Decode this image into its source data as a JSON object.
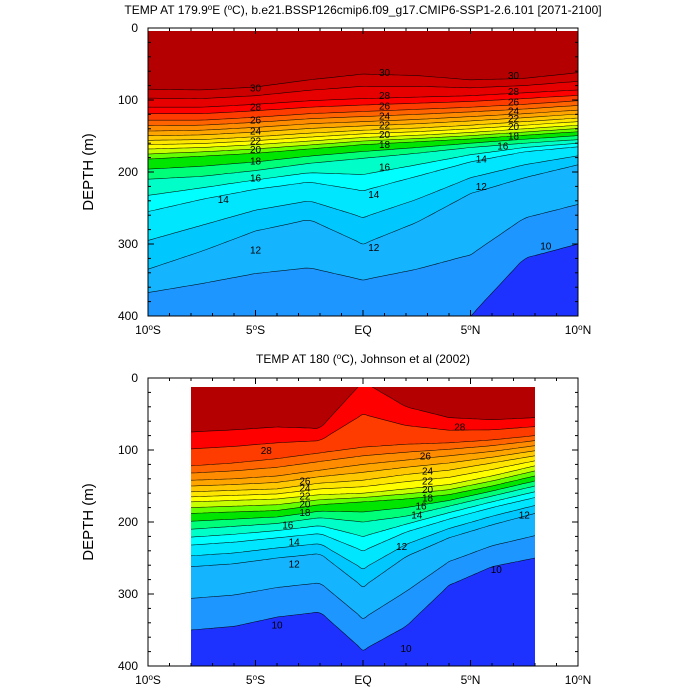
{
  "chart_data": [
    {
      "type": "contour",
      "title_parts": [
        "TEMP AT 179.9",
        "o",
        "E (",
        "o",
        "C), b.e21.BSSP126cmip6.f09_g17.CMIP6-SSP1-2.6.101 [2071-2100]"
      ],
      "ylabel": "DEPTH (m)",
      "xlabel": "",
      "xlim": [
        -10,
        10
      ],
      "ylim": [
        0,
        400
      ],
      "y_reversed": true,
      "data_xrange": [
        -10,
        10
      ],
      "xticks": [
        -10,
        -5,
        0,
        5,
        10
      ],
      "xtick_labels": [
        [
          "10",
          "o",
          "S"
        ],
        [
          "5",
          "o",
          "S"
        ],
        [
          "EQ"
        ],
        [
          "5",
          "o",
          "N"
        ],
        [
          "10",
          "o",
          "N"
        ]
      ],
      "yticks": [
        0,
        100,
        200,
        300,
        400
      ],
      "ytick_labels": [
        "0",
        "100",
        "200",
        "300",
        "400"
      ],
      "contour_interval": 1,
      "isotherm_depth_profiles": {
        "x": [
          -10,
          -7.5,
          -5,
          -2.5,
          0,
          2.5,
          5,
          7.5,
          10
        ],
        "levels": [
          {
            "t": 30,
            "depth": [
              85,
              86,
              82,
              72,
              64,
              66,
              72,
              70,
              62
            ]
          },
          {
            "t": 28,
            "depth": [
              110,
              110,
              106,
              101,
              98,
              96,
              94,
              90,
              86
            ]
          },
          {
            "t": 26,
            "depth": [
              128,
              128,
              124,
              119,
              116,
              113,
              110,
              106,
              101
            ]
          },
          {
            "t": 24,
            "depth": [
              143,
              142,
              138,
              133,
              130,
              127,
              123,
              119,
              114
            ]
          },
          {
            "t": 22,
            "depth": [
              156,
              155,
              151,
              146,
              142,
              139,
              135,
              130,
              125
            ]
          },
          {
            "t": 20,
            "depth": [
              168,
              166,
              162,
              157,
              152,
              149,
              145,
              140,
              135
            ]
          },
          {
            "t": 18,
            "depth": [
              182,
              178,
              174,
              168,
              162,
              158,
              154,
              149,
              144
            ]
          },
          {
            "t": 16,
            "depth": [
              210,
              206,
              198,
              188,
              181,
              174,
              166,
              160,
              155
            ]
          },
          {
            "t": 14,
            "depth": [
              255,
              238,
              224,
              214,
              226,
              206,
              186,
              172,
              165
            ]
          },
          {
            "t": 12,
            "depth": [
              335,
              310,
              282,
              266,
              300,
              270,
              230,
              208,
              190
            ]
          },
          {
            "t": 10,
            "depth": [
              400,
              400,
              400,
              400,
              400,
              400,
              400,
              320,
              300
            ]
          }
        ]
      },
      "contour_labels": [
        {
          "text": "30",
          "x": -5,
          "depth": 83
        },
        {
          "text": "28",
          "x": -5,
          "depth": 110
        },
        {
          "text": "26",
          "x": -5,
          "depth": 128
        },
        {
          "text": "24",
          "x": -5,
          "depth": 143
        },
        {
          "text": "22",
          "x": -5,
          "depth": 157
        },
        {
          "text": "20",
          "x": -5,
          "depth": 169
        },
        {
          "text": "18",
          "x": -5,
          "depth": 185
        },
        {
          "text": "16",
          "x": -5,
          "depth": 208
        },
        {
          "text": "14",
          "x": -6.5,
          "depth": 238
        },
        {
          "text": "12",
          "x": -5,
          "depth": 308
        },
        {
          "text": "30",
          "x": 1,
          "depth": 62
        },
        {
          "text": "28",
          "x": 1,
          "depth": 94
        },
        {
          "text": "26",
          "x": 1,
          "depth": 108
        },
        {
          "text": "24",
          "x": 1,
          "depth": 122
        },
        {
          "text": "22",
          "x": 1,
          "depth": 135
        },
        {
          "text": "20",
          "x": 1,
          "depth": 148
        },
        {
          "text": "18",
          "x": 1,
          "depth": 162
        },
        {
          "text": "16",
          "x": 1,
          "depth": 193
        },
        {
          "text": "14",
          "x": 0.5,
          "depth": 231
        },
        {
          "text": "12",
          "x": 0.5,
          "depth": 305
        },
        {
          "text": "30",
          "x": 7,
          "depth": 66
        },
        {
          "text": "28",
          "x": 7,
          "depth": 88
        },
        {
          "text": "26",
          "x": 7,
          "depth": 103
        },
        {
          "text": "24",
          "x": 7,
          "depth": 115
        },
        {
          "text": "22",
          "x": 7,
          "depth": 126
        },
        {
          "text": "20",
          "x": 7,
          "depth": 137
        },
        {
          "text": "18",
          "x": 7,
          "depth": 150
        },
        {
          "text": "16",
          "x": 6.5,
          "depth": 164
        },
        {
          "text": "14",
          "x": 5.5,
          "depth": 182
        },
        {
          "text": "12",
          "x": 5.5,
          "depth": 220
        },
        {
          "text": "10",
          "x": 8.5,
          "depth": 303
        }
      ],
      "colors": {
        "warm_to_cold": [
          "#b40000",
          "#cd0000",
          "#e60000",
          "#ff0000",
          "#ff3c00",
          "#ff6400",
          "#ff8c00",
          "#ffa500",
          "#ffc800",
          "#ffe600",
          "#ffff00",
          "#c8ff00",
          "#64ff00",
          "#00e600",
          "#00ff78",
          "#00ffc8",
          "#00ffff",
          "#00e6ff",
          "#00c8ff",
          "#14b4ff",
          "#1e96ff",
          "#1e78ff",
          "#1e5aff",
          "#1e32ff"
        ]
      }
    },
    {
      "type": "contour",
      "title_parts": [
        "TEMP AT 180 (",
        "o",
        "C), Johnson et al (2002)"
      ],
      "ylabel": "DEPTH (m)",
      "xlabel": "",
      "xlim": [
        -10,
        10
      ],
      "ylim": [
        0,
        400
      ],
      "y_reversed": true,
      "data_xrange": [
        -8,
        8
      ],
      "xticks": [
        -10,
        -5,
        0,
        5,
        10
      ],
      "xtick_labels": [
        [
          "10",
          "o",
          "S"
        ],
        [
          "5",
          "o",
          "S"
        ],
        [
          "EQ"
        ],
        [
          "5",
          "o",
          "N"
        ],
        [
          "10",
          "o",
          "N"
        ]
      ],
      "yticks": [
        0,
        100,
        200,
        300,
        400
      ],
      "ytick_labels": [
        "0",
        "100",
        "200",
        "300",
        "400"
      ],
      "contour_interval": 1,
      "isotherm_depth_profiles": {
        "x": [
          -8,
          -6,
          -4,
          -2,
          0,
          2,
          4,
          6,
          8
        ],
        "levels": [
          {
            "t": 28,
            "depth": [
              75,
              72,
              68,
              70,
              5,
              40,
              55,
              58,
              55
            ]
          },
          {
            "t": 26,
            "depth": [
              122,
              118,
              112,
              104,
              96,
              92,
              90,
              86,
              80
            ]
          },
          {
            "t": 24,
            "depth": [
              142,
              140,
              136,
              128,
              120,
              114,
              108,
              102,
              94
            ]
          },
          {
            "t": 22,
            "depth": [
              158,
              156,
              154,
              146,
              142,
              134,
              128,
              118,
              108
            ]
          },
          {
            "t": 20,
            "depth": [
              172,
              170,
              168,
              162,
              160,
              154,
              148,
              136,
              122
            ]
          },
          {
            "t": 18,
            "depth": [
              188,
              186,
              184,
              176,
              172,
              168,
              162,
              150,
              136
            ]
          },
          {
            "t": 16,
            "depth": [
              210,
              206,
              202,
              194,
              200,
              192,
              178,
              164,
              150
            ]
          },
          {
            "t": 14,
            "depth": [
              232,
              228,
              222,
              216,
              240,
              214,
              196,
              180,
              166
            ]
          },
          {
            "t": 12,
            "depth": [
              262,
              258,
              250,
              244,
              290,
              248,
              222,
              204,
              188
            ]
          },
          {
            "t": 10,
            "depth": [
              350,
              345,
              332,
              325,
              378,
              345,
              288,
              262,
              250
            ]
          }
        ]
      },
      "contour_labels": [
        {
          "text": "28",
          "x": 4.5,
          "depth": 68
        },
        {
          "text": "28",
          "x": -4.5,
          "depth": 101
        },
        {
          "text": "26",
          "x": 2.9,
          "depth": 108
        },
        {
          "text": "24",
          "x": 3,
          "depth": 129
        },
        {
          "text": "22",
          "x": 3,
          "depth": 143
        },
        {
          "text": "20",
          "x": 3,
          "depth": 155
        },
        {
          "text": "18",
          "x": 3,
          "depth": 167
        },
        {
          "text": "16",
          "x": 2.7,
          "depth": 178
        },
        {
          "text": "14",
          "x": 2.5,
          "depth": 190
        },
        {
          "text": "12",
          "x": 1.8,
          "depth": 234
        },
        {
          "text": "26",
          "x": -2.7,
          "depth": 143
        },
        {
          "text": "24",
          "x": -2.7,
          "depth": 153
        },
        {
          "text": "22",
          "x": -2.7,
          "depth": 164
        },
        {
          "text": "20",
          "x": -2.7,
          "depth": 175
        },
        {
          "text": "18",
          "x": -2.7,
          "depth": 187
        },
        {
          "text": "16",
          "x": -3.5,
          "depth": 204
        },
        {
          "text": "14",
          "x": -3.2,
          "depth": 228
        },
        {
          "text": "12",
          "x": -3.2,
          "depth": 258
        },
        {
          "text": "12",
          "x": 7.5,
          "depth": 190
        },
        {
          "text": "10",
          "x": 6.2,
          "depth": 266
        },
        {
          "text": "10",
          "x": -4,
          "depth": 343
        },
        {
          "text": "10",
          "x": 2,
          "depth": 376
        }
      ],
      "colors": {
        "warm_to_cold": [
          "#b40000",
          "#cd0000",
          "#e60000",
          "#ff0000",
          "#ff3c00",
          "#ff6400",
          "#ff8c00",
          "#ffa500",
          "#ffc800",
          "#ffe600",
          "#ffff00",
          "#c8ff00",
          "#64ff00",
          "#00e600",
          "#00ff78",
          "#00ffc8",
          "#00ffff",
          "#00e6ff",
          "#00c8ff",
          "#14b4ff",
          "#1e96ff",
          "#1e78ff",
          "#1e5aff",
          "#1e32ff"
        ]
      }
    }
  ]
}
